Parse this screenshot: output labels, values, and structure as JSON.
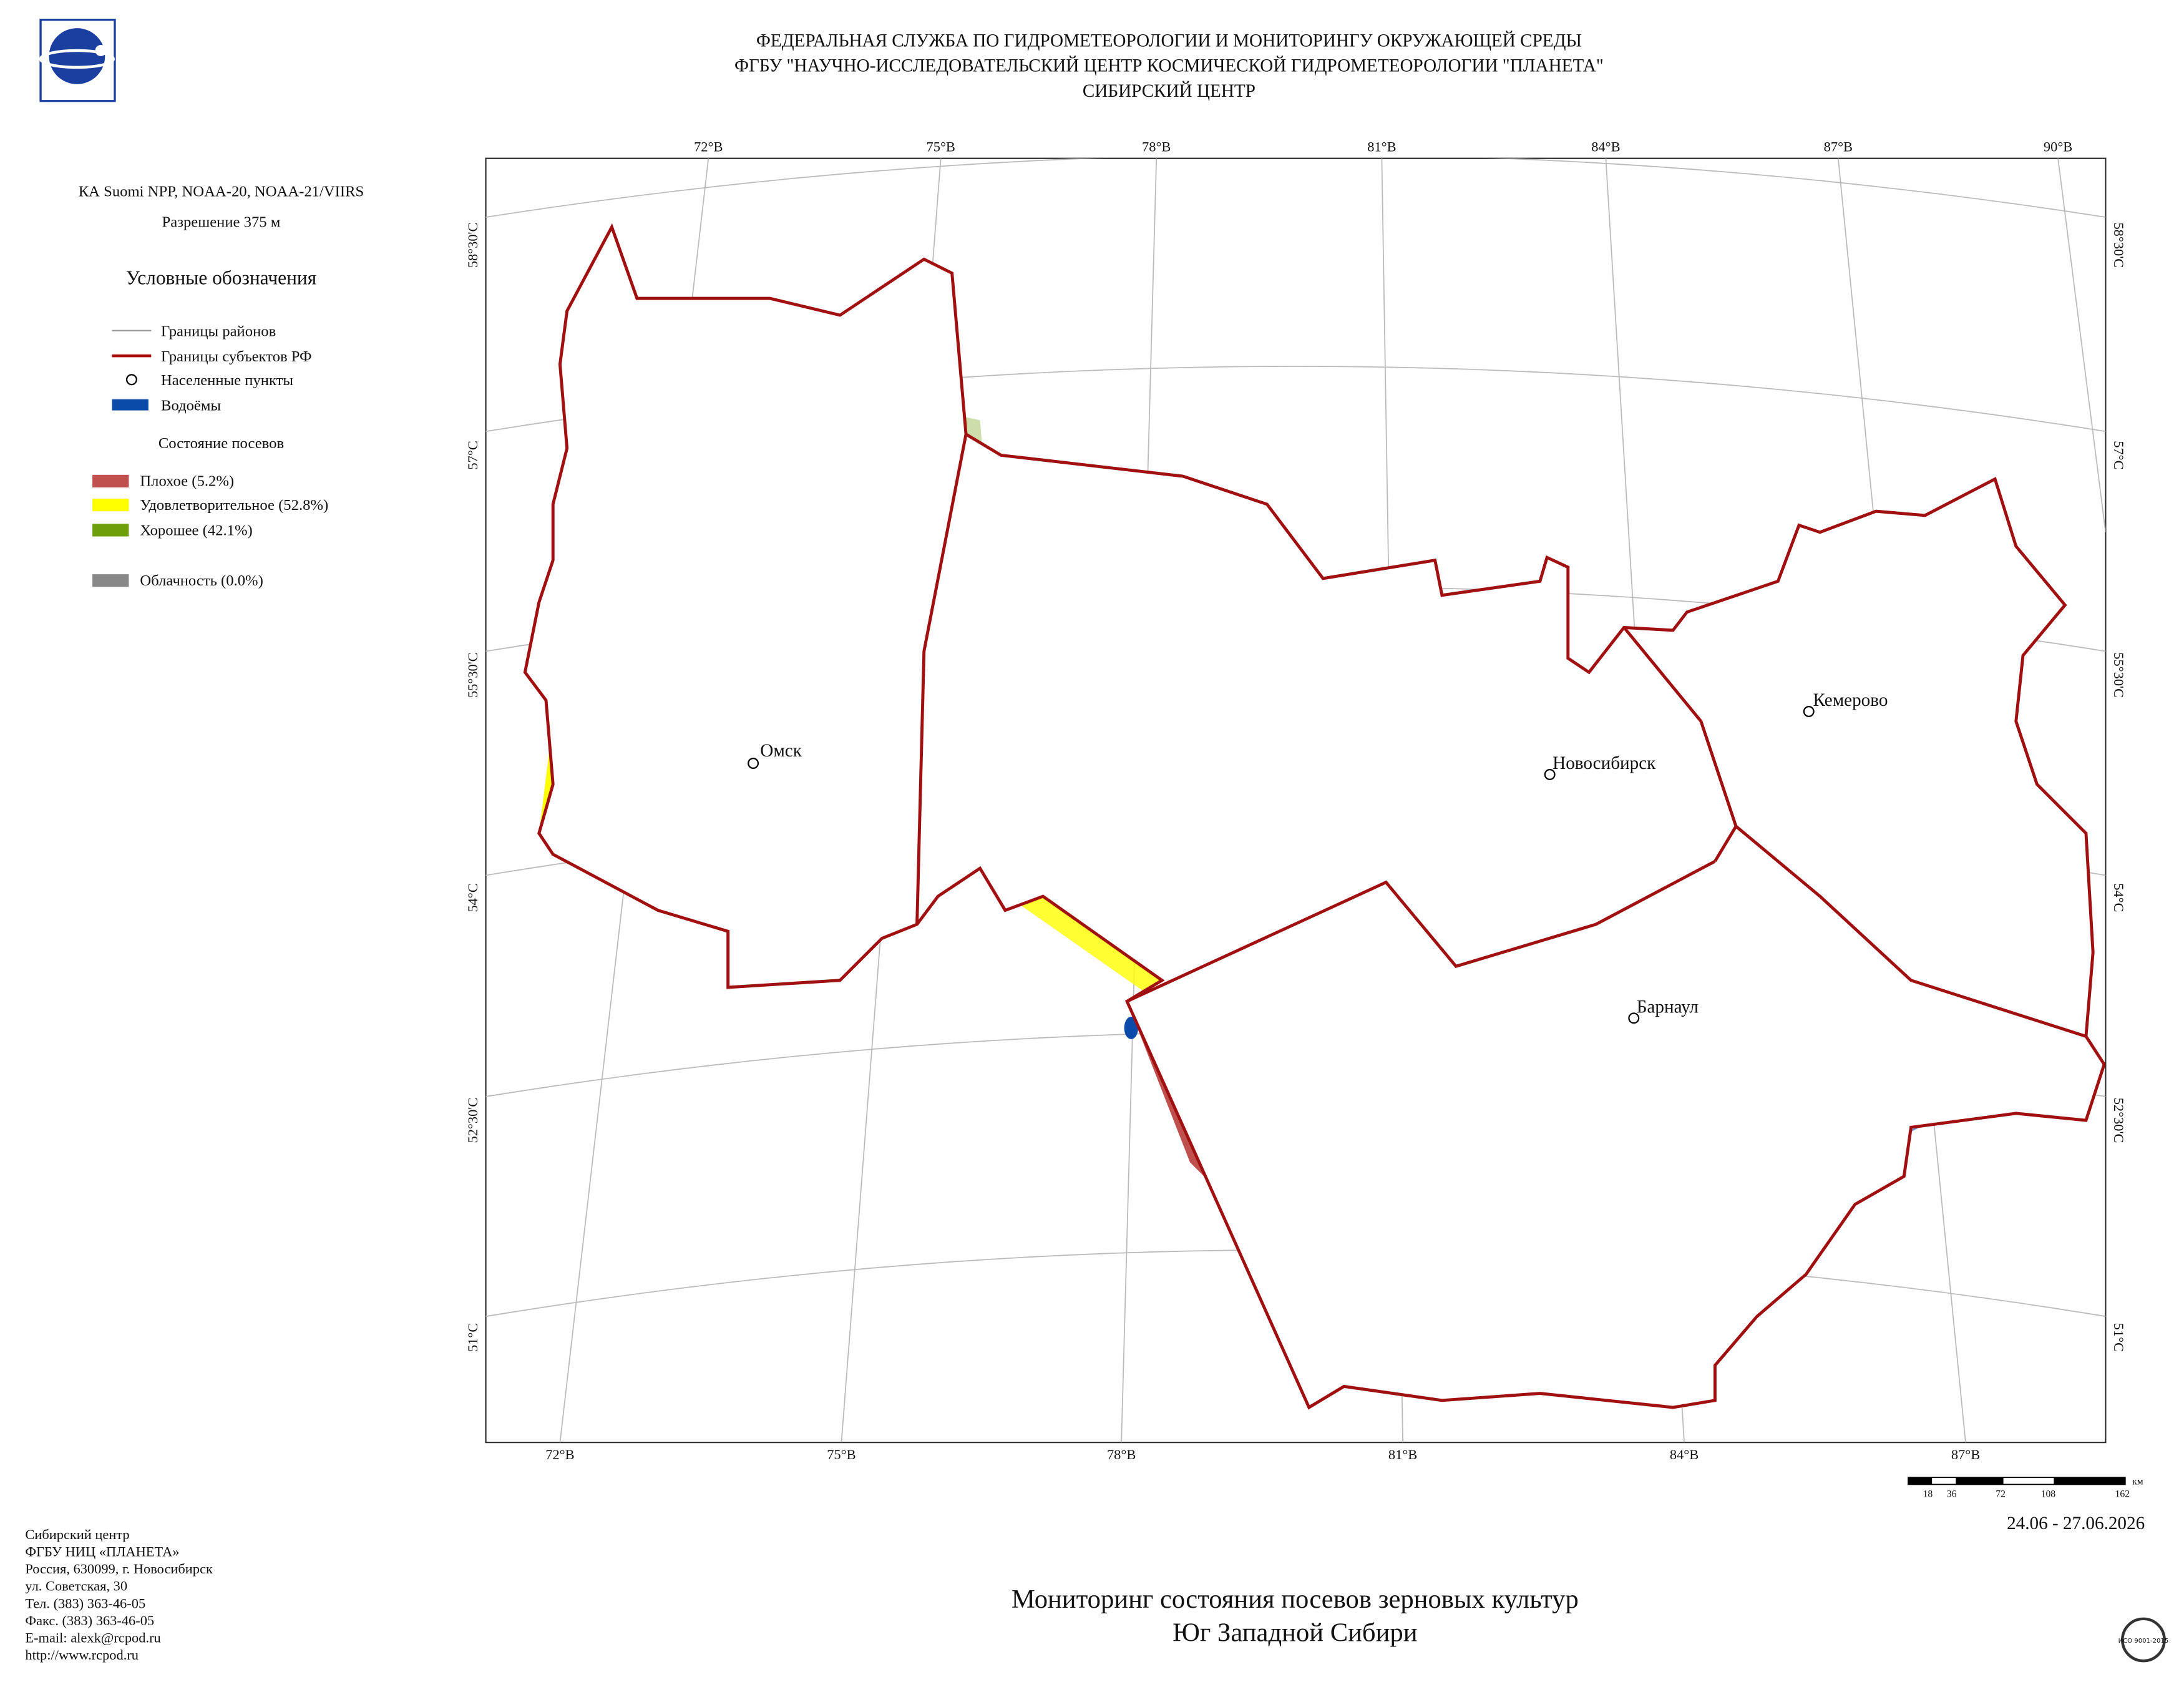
{
  "header": {
    "lines": [
      "ФЕДЕРАЛЬНАЯ СЛУЖБА ПО ГИДРОМЕТЕОРОЛОГИИ И МОНИТОРИНГУ ОКРУЖАЮЩЕЙ СРЕДЫ",
      "ФГБУ \"НАУЧНО-ИССЛЕДОВАТЕЛЬСКИЙ ЦЕНТР КОСМИЧЕСКОЙ ГИДРОМЕТЕОРОЛОГИИ \"ПЛАНЕТА\"",
      "СИБИРСКИЙ ЦЕНТР"
    ]
  },
  "sidebar": {
    "satellite": "КА Suomi NPP, NOAA-20, NOAA-21/VIIRS",
    "resolution": "Разрешение 375 м",
    "legend_title": "Условные обозначения",
    "legend": [
      "Границы районов",
      "Границы субъектов РФ",
      "Населенные пункты",
      "Водоёмы"
    ],
    "crop_title": "Состояние посевов",
    "crop_legend": [
      "Плохое (5.2%)",
      "Удовлетворительное (52.8%)",
      "Хорошее (42.1%)"
    ],
    "cloud": "Облачность (0.0%)"
  },
  "map": {
    "top_lon_labels": [
      "72°В",
      "75°В",
      "78°В",
      "81°В",
      "84°В",
      "87°В",
      "90°В"
    ],
    "bottom_lon_labels": [
      "72°В",
      "75°В",
      "78°В",
      "81°В",
      "84°В",
      "87°В"
    ],
    "lat_labels": [
      "58°30'С",
      "57°С",
      "55°30'С",
      "54°С",
      "52°30'С",
      "51°С"
    ],
    "cities": [
      "Омск",
      "Новосибирск",
      "Кемерово",
      "Барнаул"
    ]
  },
  "scale": {
    "labels": [
      18,
      36,
      72,
      108,
      162
    ],
    "unit": "км"
  },
  "date": "24.06 - 27.06.2026",
  "title": {
    "lines": [
      "Мониторинг состояния посевов зерновых культур",
      "Юг Западной Сибири"
    ]
  },
  "footer": {
    "lines": [
      "Сибирский центр",
      "ФГБУ НИЦ «ПЛАНЕТА»",
      "Россия, 630099, г. Новосибирск",
      "ул. Советская, 30",
      "Тел. (383) 363-46-05",
      "Факс. (383) 363-46-05",
      "E-mail: alexk@rcpod.ru",
      "http://www.rcpod.ru"
    ],
    "iso": "ИСО 9001-2015"
  }
}
